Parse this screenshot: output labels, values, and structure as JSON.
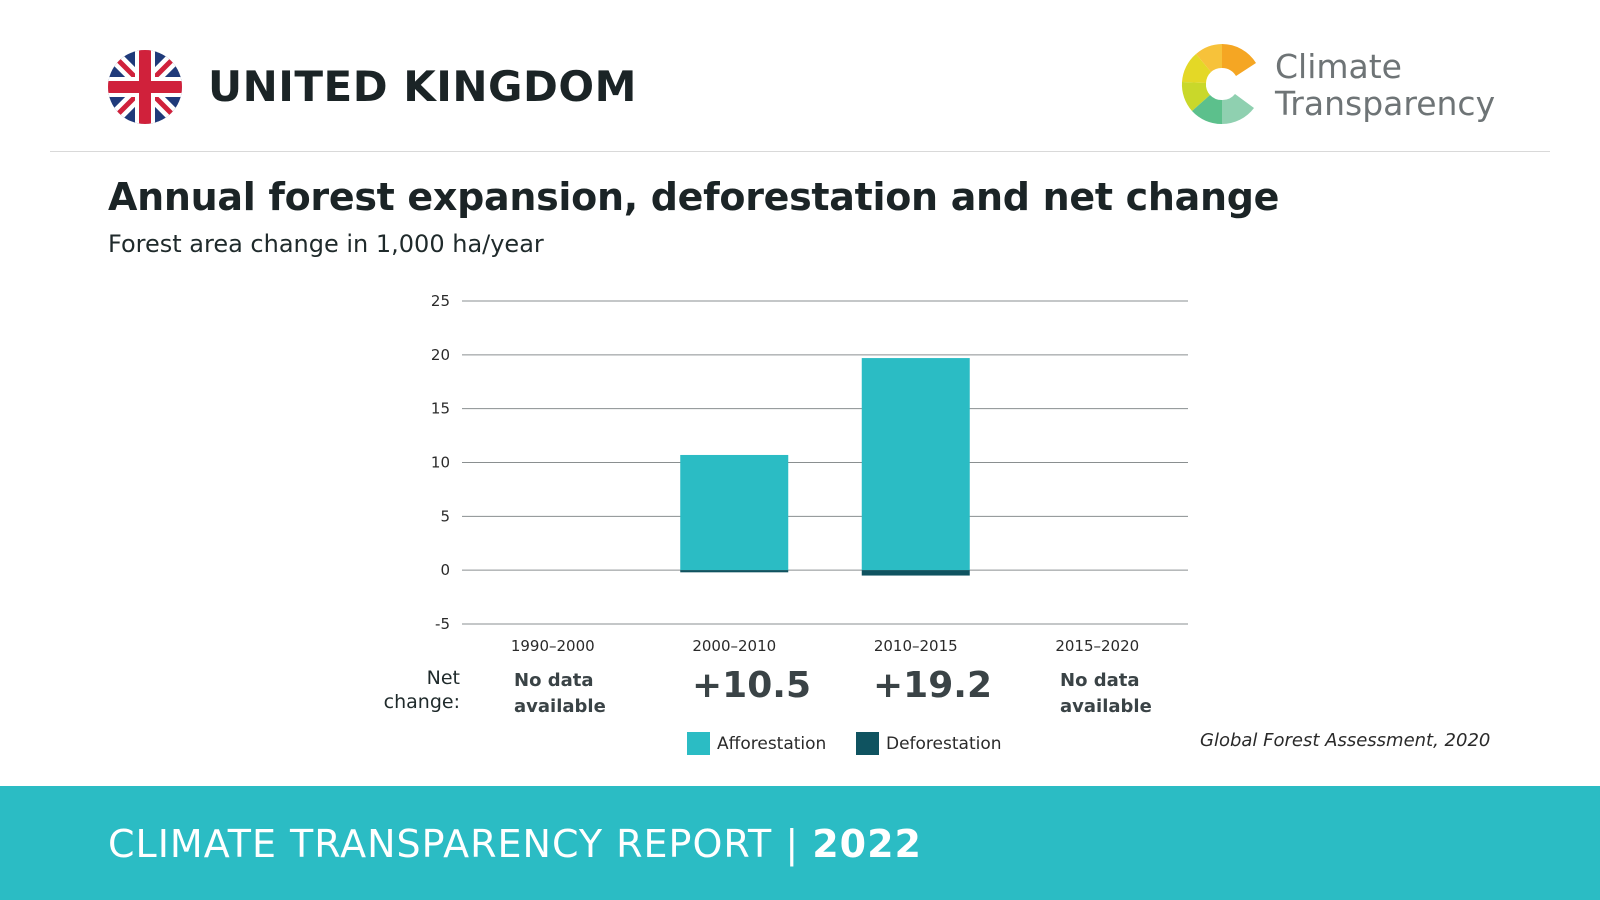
{
  "header": {
    "country": "UNITED KINGDOM",
    "logo": {
      "line1": "Climate",
      "line2": "Transparency"
    }
  },
  "chart_data": {
    "type": "bar",
    "title": "Annual forest expansion, deforestation and net change",
    "subtitle": "Forest area change in 1,000 ha/year",
    "categories": [
      "1990–2000",
      "2000–2010",
      "2010–2015",
      "2015–2020"
    ],
    "series": [
      {
        "name": "Afforestation",
        "color": "#2bbcc4",
        "values": [
          null,
          10.7,
          19.7,
          null
        ]
      },
      {
        "name": "Deforestation",
        "color": "#0f5360",
        "values": [
          null,
          -0.2,
          -0.5,
          null
        ]
      }
    ],
    "net_change": {
      "label_line1": "Net",
      "label_line2": "change:",
      "values": [
        {
          "kind": "na",
          "line1": "No data",
          "line2": "available"
        },
        {
          "kind": "num",
          "text": "+10.5"
        },
        {
          "kind": "num",
          "text": "+19.2"
        },
        {
          "kind": "na",
          "line1": "No data",
          "line2": "available"
        }
      ]
    },
    "ylim": [
      -5,
      25
    ],
    "yticks": [
      25,
      20,
      15,
      10,
      5,
      0,
      -5
    ],
    "grid": true,
    "legend": "bottom-center",
    "source": "Global Forest Assessment, 2020"
  },
  "footer": {
    "report": "CLIMATE TRANSPARENCY REPORT",
    "sep": "|",
    "year": "2022"
  },
  "colors": {
    "accent": "#2bbcc4",
    "dark": "#0f5360",
    "text": "#1b2426"
  }
}
